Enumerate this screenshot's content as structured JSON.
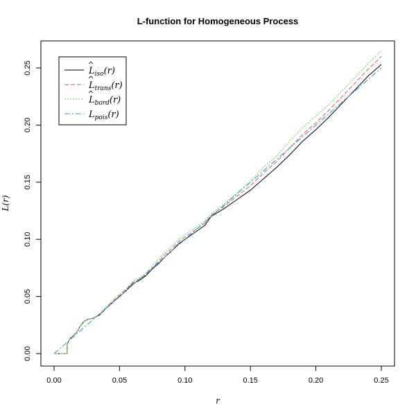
{
  "chart_data": {
    "type": "line",
    "title": "L-function for Homogeneous Process",
    "xlabel": "r",
    "ylabel": "L(r)",
    "xlim": [
      0,
      0.25
    ],
    "ylim": [
      0,
      0.25
    ],
    "xticks": [
      "0.00",
      "0.05",
      "0.10",
      "0.15",
      "0.20",
      "0.25"
    ],
    "yticks": [
      "0.00",
      "0.05",
      "0.10",
      "0.15",
      "0.20",
      "0.25"
    ],
    "grid": false,
    "legend_position": "top-left",
    "series": [
      {
        "base": "L",
        "hat": true,
        "sub": "iso",
        "arg": "(r)",
        "color": "#000000",
        "dash": "solid",
        "x": [
          0,
          0.01,
          0.01,
          0.012,
          0.014,
          0.016,
          0.018,
          0.02,
          0.022,
          0.024,
          0.026,
          0.03,
          0.035,
          0.04,
          0.045,
          0.05,
          0.055,
          0.06,
          0.065,
          0.07,
          0.075,
          0.08,
          0.085,
          0.09,
          0.095,
          0.1,
          0.105,
          0.11,
          0.115,
          0.12,
          0.13,
          0.14,
          0.15,
          0.16,
          0.17,
          0.18,
          0.19,
          0.2,
          0.21,
          0.22,
          0.23,
          0.24,
          0.25
        ],
        "y": [
          0,
          0,
          0.008,
          0.013,
          0.015,
          0.017,
          0.02,
          0.024,
          0.027,
          0.029,
          0.03,
          0.031,
          0.034,
          0.04,
          0.045,
          0.05,
          0.055,
          0.061,
          0.064,
          0.068,
          0.074,
          0.079,
          0.085,
          0.09,
          0.096,
          0.1,
          0.104,
          0.108,
          0.112,
          0.12,
          0.127,
          0.135,
          0.143,
          0.153,
          0.163,
          0.174,
          0.186,
          0.196,
          0.207,
          0.219,
          0.231,
          0.243,
          0.253
        ]
      },
      {
        "base": "L",
        "hat": true,
        "sub": "trans",
        "arg": "(r)",
        "color": "#df536b",
        "dash": "6,3",
        "x": [
          0,
          0.01,
          0.01,
          0.012,
          0.014,
          0.016,
          0.018,
          0.02,
          0.022,
          0.024,
          0.026,
          0.03,
          0.035,
          0.04,
          0.045,
          0.05,
          0.055,
          0.06,
          0.065,
          0.07,
          0.075,
          0.08,
          0.085,
          0.09,
          0.095,
          0.1,
          0.105,
          0.11,
          0.115,
          0.12,
          0.13,
          0.14,
          0.15,
          0.16,
          0.17,
          0.18,
          0.19,
          0.2,
          0.21,
          0.22,
          0.23,
          0.24,
          0.25
        ],
        "y": [
          0,
          0,
          0.008,
          0.013,
          0.015,
          0.017,
          0.02,
          0.024,
          0.027,
          0.029,
          0.03,
          0.031,
          0.034,
          0.04,
          0.046,
          0.051,
          0.056,
          0.062,
          0.065,
          0.069,
          0.075,
          0.081,
          0.087,
          0.092,
          0.098,
          0.102,
          0.106,
          0.11,
          0.114,
          0.121,
          0.129,
          0.138,
          0.147,
          0.158,
          0.168,
          0.18,
          0.192,
          0.202,
          0.213,
          0.225,
          0.237,
          0.249,
          0.26
        ]
      },
      {
        "base": "L",
        "hat": true,
        "sub": "bord",
        "arg": "(r)",
        "color": "#61d04f",
        "dash": "2,2",
        "x": [
          0,
          0.01,
          0.01,
          0.012,
          0.014,
          0.016,
          0.018,
          0.02,
          0.022,
          0.024,
          0.026,
          0.03,
          0.035,
          0.04,
          0.045,
          0.05,
          0.055,
          0.06,
          0.065,
          0.07,
          0.075,
          0.08,
          0.085,
          0.09,
          0.095,
          0.1,
          0.105,
          0.11,
          0.115,
          0.12,
          0.13,
          0.14,
          0.15,
          0.16,
          0.17,
          0.18,
          0.19,
          0.2,
          0.21,
          0.22,
          0.23,
          0.24,
          0.25
        ],
        "y": [
          0,
          0,
          0.008,
          0.013,
          0.015,
          0.017,
          0.02,
          0.024,
          0.027,
          0.029,
          0.03,
          0.031,
          0.035,
          0.041,
          0.047,
          0.052,
          0.057,
          0.063,
          0.066,
          0.07,
          0.077,
          0.083,
          0.089,
          0.094,
          0.1,
          0.104,
          0.108,
          0.112,
          0.116,
          0.122,
          0.131,
          0.141,
          0.151,
          0.163,
          0.173,
          0.186,
          0.198,
          0.208,
          0.218,
          0.23,
          0.242,
          0.254,
          0.265
        ]
      },
      {
        "base": "L",
        "hat": false,
        "sub": "pois",
        "arg": "(r)",
        "color": "#2297e6",
        "dash": "8,3,2,3",
        "x": [
          0,
          0.25
        ],
        "y": [
          0,
          0.25
        ]
      }
    ]
  }
}
